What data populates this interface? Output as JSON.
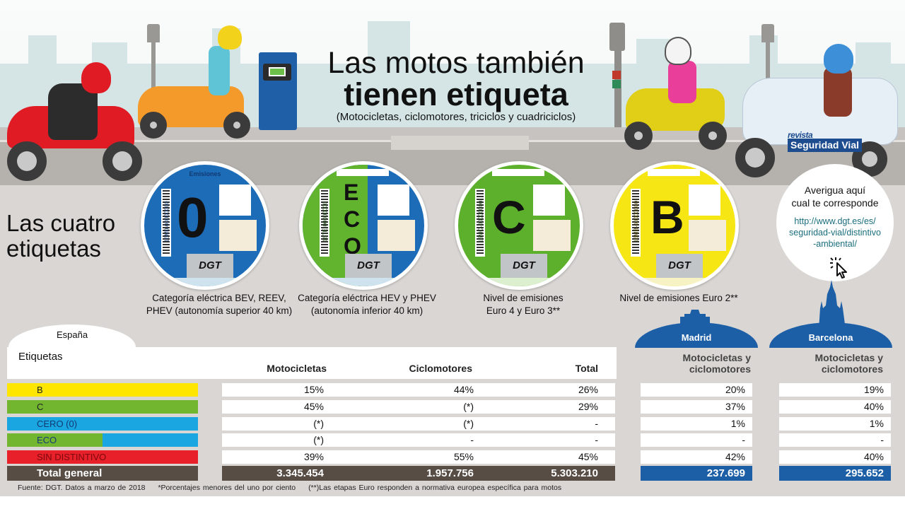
{
  "header": {
    "title_line1": "Las motos también",
    "title_line2": "tienen etiqueta",
    "subtitle": "(Motocicletas, ciclomotores, triciclos y cuadriciclos)",
    "brand": {
      "top": "revista",
      "main": "Seguridad Vial"
    }
  },
  "section_title": [
    "Las cuatro",
    "etiquetas"
  ],
  "stickers": [
    {
      "letter": "0",
      "serial": "16M0-00000000",
      "top_text": "Emisiones",
      "logo": "DGT",
      "color": "#1d6cb8",
      "caption": [
        "Categoría eléctrica BEV, REEV,",
        "PHEV (autonomía superior 40 km)"
      ]
    },
    {
      "letter": "ECO",
      "serial": "16TE-00000000",
      "logo": "DGT",
      "color_left": "#62b32e",
      "color_right": "#1d6cb8",
      "caption": [
        "Categoría eléctrica HEV y PHEV",
        "(autonomía inferior 40 km)"
      ]
    },
    {
      "letter": "C",
      "serial": "16MC-00000000",
      "logo": "DGT",
      "color": "#5cb02c",
      "caption": [
        "Nivel de emisiones",
        "Euro 4 y Euro 3**"
      ]
    },
    {
      "letter": "B",
      "serial": "16MB-00000000",
      "logo": "DGT",
      "color": "#f5e614",
      "caption": [
        "Nivel de emisiones Euro 2**"
      ]
    }
  ],
  "lookup": {
    "title": [
      "Averigua aquí",
      "cual te corresponde"
    ],
    "link": [
      "http://www.dgt.es/es/",
      "seguridad-vial/distintivo",
      "-ambiental/"
    ],
    "icon": "cursor-click-icon"
  },
  "spain_table": {
    "region": "España",
    "label_header": "Etiquetas",
    "columns": [
      "Motocicletas",
      "Ciclomotores",
      "Total"
    ],
    "rows": [
      {
        "label": "B",
        "color": "#ffe600",
        "text_color": "#222",
        "values": [
          "15%",
          "44%",
          "26%"
        ]
      },
      {
        "label": "C",
        "color": "#72b62f",
        "text_color": "#222",
        "values": [
          "45%",
          "(*)",
          "29%"
        ]
      },
      {
        "label": "CERO (0)",
        "color": "#1aa6e0",
        "text_color": "#123a73",
        "values": [
          "(*)",
          "(*)",
          "-"
        ]
      },
      {
        "label": "ECO",
        "color_left": "#72b62f",
        "color_right": "#1aa6e0",
        "text_color": "#123a73",
        "values": [
          "(*)",
          "-",
          "-"
        ]
      },
      {
        "label": "SIN DISTINTIVO",
        "color": "#e8202a",
        "text_color": "#7a0a0e",
        "values": [
          "39%",
          "55%",
          "45%"
        ]
      }
    ],
    "total": {
      "label": "Total general",
      "color": "#584d45",
      "values": [
        "3.345.454",
        "1.957.756",
        "5.303.210"
      ]
    }
  },
  "cities": [
    {
      "name": "Madrid",
      "header": [
        "Motocicletas y",
        "ciclomotores"
      ],
      "values": [
        "20%",
        "37%",
        "1%",
        "-",
        "42%"
      ],
      "total": "237.699",
      "color": "#1d5fa7"
    },
    {
      "name": "Barcelona",
      "header": [
        "Motocicletas y",
        "ciclomotores"
      ],
      "values": [
        "19%",
        "40%",
        "1%",
        "-",
        "40%"
      ],
      "total": "295.652",
      "color": "#1d5fa7"
    }
  ],
  "footnotes": [
    "Fuente: DGT. Datos a marzo de 2018",
    "*Porcentajes menores del uno por ciento",
    "(**)Las etapas Euro responden a normativa europea específica para motos"
  ]
}
